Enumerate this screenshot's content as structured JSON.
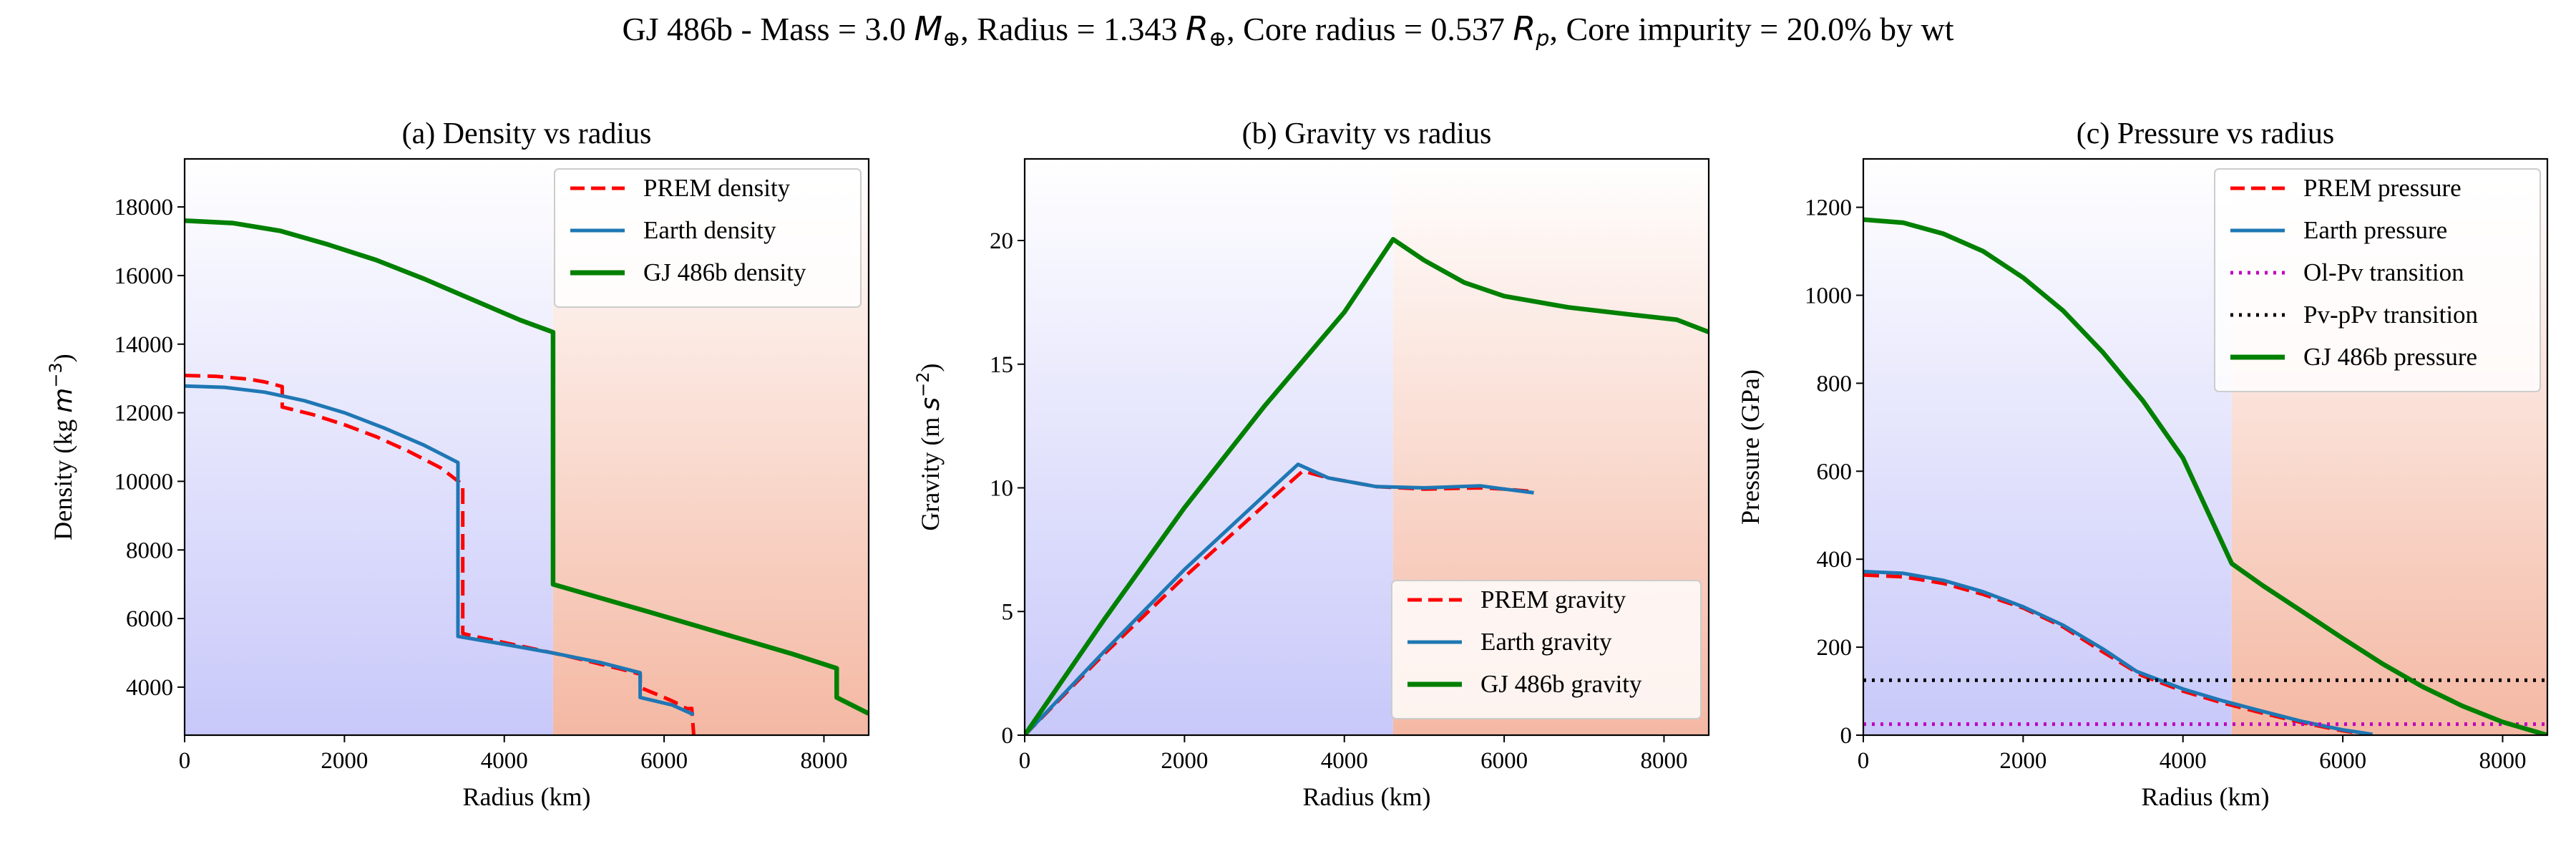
{
  "figure_title": "GJ 486b  -  Mass = 3.0 M⊕, Radius = 1.343 R⊕, Core radius = 0.537 Rp, Core impurity = 20.0% by wt",
  "title_parts": {
    "planet": "GJ 486b  -  Mass = 3.0 ",
    "m_sym": "M",
    "earth_sub": "⊕",
    "radius_text": ", Radius = 1.343 ",
    "r_sym": "R",
    "core_text": ", Core radius = 0.537 ",
    "p_sub": "p",
    "impurity_text": ", Core impurity = 20.0% by wt"
  },
  "colors": {
    "prem": "#ff0000",
    "earth": "#1f77b4",
    "planet": "#008000",
    "olpv": "#bf00bf",
    "pvppv": "#000000",
    "core_bg_bottom": "#c8c8fa",
    "mantle_bg_bottom": "#f4b8a3"
  },
  "chart_data": [
    {
      "type": "line",
      "title": "(a) Density vs radius",
      "xlabel": "Radius (km)",
      "ylabel": "Density (kg m^-3)",
      "ylabel_parts": {
        "pre": "Density (kg ",
        "unit": "m",
        "sup": "−3",
        "post": ")"
      },
      "xlim": [
        0,
        8560
      ],
      "ylim": [
        2600,
        19400
      ],
      "xticks": [
        0,
        2000,
        4000,
        6000,
        8000
      ],
      "yticks": [
        4000,
        6000,
        8000,
        10000,
        12000,
        14000,
        16000,
        18000
      ],
      "core_boundary_km": 4610,
      "legend_position": "top-right",
      "series": [
        {
          "name": "PREM density",
          "style": "dashed",
          "color_key": "prem",
          "x": [
            0,
            400,
            800,
            1000,
            1221,
            1221,
            1600,
            2000,
            2400,
            2800,
            3200,
            3480,
            3480,
            3630,
            4200,
            4800,
            5400,
            5701,
            5701,
            6000,
            6151,
            6151,
            6291,
            6346,
            6371,
            6371
          ],
          "y": [
            13088,
            13060,
            12980,
            12900,
            12764,
            12166,
            11950,
            11650,
            11300,
            10880,
            10400,
            9903,
            5566,
            5480,
            5200,
            4900,
            4560,
            4380,
            3990,
            3700,
            3543,
            3510,
            3370,
            3380,
            2600,
            2600
          ]
        },
        {
          "name": "Earth density",
          "style": "solid",
          "color_key": "earth",
          "x": [
            0,
            500,
            1000,
            1500,
            2000,
            2500,
            3000,
            3420,
            3420,
            4000,
            4600,
            5200,
            5700,
            5700,
            6100,
            6371
          ],
          "y": [
            12780,
            12740,
            12600,
            12350,
            12000,
            11550,
            11050,
            10550,
            5480,
            5250,
            5000,
            4720,
            4420,
            3700,
            3480,
            3200
          ]
        },
        {
          "name": "GJ 486b density",
          "style": "solid",
          "color_key": "planet",
          "x": [
            0,
            600,
            1200,
            1800,
            2400,
            3000,
            3600,
            4200,
            4610,
            4610,
            5200,
            5800,
            6400,
            7000,
            7600,
            8160,
            8160,
            8560
          ],
          "y": [
            17600,
            17530,
            17300,
            16900,
            16450,
            15900,
            15300,
            14700,
            14350,
            7000,
            6600,
            6200,
            5790,
            5380,
            4970,
            4550,
            3700,
            3230
          ]
        }
      ]
    },
    {
      "type": "line",
      "title": "(b) Gravity vs radius",
      "xlabel": "Radius (km)",
      "ylabel": "Gravity (m s^-2)",
      "ylabel_parts": {
        "pre": "Gravity (m ",
        "unit": "s",
        "sup": "−2",
        "post": ")"
      },
      "xlim": [
        0,
        8560
      ],
      "ylim": [
        0,
        23.3
      ],
      "xticks": [
        0,
        2000,
        4000,
        6000,
        8000
      ],
      "yticks": [
        0,
        5,
        10,
        15,
        20
      ],
      "core_boundary_km": 4610,
      "legend_position": "bottom-right",
      "series": [
        {
          "name": "PREM gravity",
          "style": "dashed",
          "color_key": "prem",
          "x": [
            0,
            1000,
            2000,
            3000,
            3480,
            3800,
            4400,
            5000,
            5701,
            6000,
            6371
          ],
          "y": [
            0,
            3.3,
            6.4,
            9.3,
            10.68,
            10.4,
            10.05,
            9.95,
            10.0,
            9.95,
            9.85
          ]
        },
        {
          "name": "Earth gravity",
          "style": "solid",
          "color_key": "earth",
          "x": [
            0,
            1000,
            2000,
            3000,
            3420,
            3800,
            4400,
            5000,
            5700,
            6000,
            6371
          ],
          "y": [
            0,
            3.4,
            6.7,
            9.7,
            10.95,
            10.4,
            10.05,
            10.0,
            10.08,
            9.95,
            9.8
          ]
        },
        {
          "name": "GJ 486b gravity",
          "style": "solid",
          "color_key": "planet",
          "x": [
            0,
            1000,
            2000,
            3000,
            4000,
            4610,
            5000,
            5500,
            6000,
            6800,
            7600,
            8160,
            8560
          ],
          "y": [
            0,
            4.7,
            9.2,
            13.3,
            17.1,
            20.05,
            19.2,
            18.3,
            17.75,
            17.3,
            17.0,
            16.8,
            16.3
          ]
        }
      ]
    },
    {
      "type": "line",
      "title": "(c) Pressure vs radius",
      "xlabel": "Radius (km)",
      "ylabel": "Pressure (GPa)",
      "xlim": [
        0,
        8560
      ],
      "ylim": [
        0,
        1310
      ],
      "xticks": [
        0,
        2000,
        4000,
        6000,
        8000
      ],
      "yticks": [
        0,
        200,
        400,
        600,
        800,
        1000,
        1200
      ],
      "core_boundary_km": 4610,
      "legend_position": "top-right",
      "series": [
        {
          "name": "PREM pressure",
          "style": "dashed",
          "color_key": "prem",
          "x": [
            0,
            500,
            1000,
            1500,
            2000,
            2500,
            3000,
            3480,
            4000,
            4500,
            5000,
            5500,
            6000,
            6371
          ],
          "y": [
            364,
            360,
            345,
            320,
            289,
            246,
            189,
            136,
            100,
            73,
            50,
            28,
            10,
            0
          ]
        },
        {
          "name": "Earth pressure",
          "style": "solid",
          "color_key": "earth",
          "x": [
            0,
            500,
            1000,
            1500,
            2000,
            2500,
            3000,
            3420,
            4000,
            4500,
            5000,
            5500,
            6000,
            6371
          ],
          "y": [
            372,
            368,
            352,
            326,
            292,
            250,
            196,
            145,
            105,
            78,
            54,
            31,
            12,
            2
          ]
        },
        {
          "name": "Ol-Pv transition",
          "style": "dotted",
          "color_key": "olpv",
          "x": [
            0,
            8560
          ],
          "y": [
            25,
            25
          ]
        },
        {
          "name": "Pv-pPv transition",
          "style": "dotted",
          "color_key": "pvppv",
          "x": [
            0,
            8560
          ],
          "y": [
            125,
            125
          ]
        },
        {
          "name": "GJ 486b pressure",
          "style": "solid",
          "color_key": "planet",
          "x": [
            0,
            500,
            1000,
            1500,
            2000,
            2500,
            3000,
            3500,
            4000,
            4610,
            5000,
            5500,
            6000,
            6500,
            7000,
            7500,
            8000,
            8560
          ],
          "y": [
            1172,
            1165,
            1140,
            1100,
            1040,
            965,
            870,
            760,
            630,
            390,
            340,
            280,
            220,
            162,
            110,
            66,
            30,
            0
          ]
        }
      ]
    }
  ]
}
